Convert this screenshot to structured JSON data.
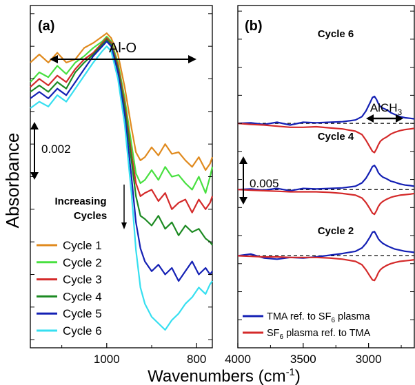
{
  "figure": {
    "ylabel": "Absorbance",
    "xlabel": "Wavenumbers (cm",
    "xlabel_sup": "-1",
    "xlabel_close": ")"
  },
  "chart_data": [
    {
      "panel": "(a)",
      "type": "line",
      "xlabel": "Wavenumbers (cm-1)",
      "ylabel": "Absorbance",
      "xlim": [
        1170,
        765
      ],
      "ylim": [
        -0.0145,
        0.0065
      ],
      "x_ticks": [
        1000,
        800
      ],
      "grid": false,
      "legend_position": "lower-left",
      "annotations": {
        "band": "Al-O",
        "trend_line1": "Increasing",
        "trend_line2": "Cycles",
        "scalebar": "0.002"
      },
      "scalebar_value": 0.002,
      "x": [
        1170,
        1150,
        1130,
        1110,
        1090,
        1070,
        1050,
        1030,
        1010,
        1000,
        990,
        975,
        960,
        945,
        935,
        925,
        915,
        900,
        885,
        870,
        855,
        840,
        825,
        810,
        795,
        780,
        770,
        765
      ],
      "series": [
        {
          "name": "Cycle 1",
          "color": "#e08a1e",
          "values": [
            0.003,
            0.0035,
            0.003,
            0.0036,
            0.003,
            0.0032,
            0.0039,
            0.0042,
            0.0046,
            0.0048,
            0.0045,
            0.0035,
            0.0015,
            -0.001,
            -0.0025,
            -0.003,
            -0.0028,
            -0.0022,
            -0.0027,
            -0.002,
            -0.0026,
            -0.0025,
            -0.003,
            -0.0034,
            -0.0028,
            -0.0036,
            -0.0032,
            -0.0028
          ]
        },
        {
          "name": "Cycle 2",
          "color": "#48e040",
          "values": [
            0.0018,
            0.0024,
            0.0021,
            0.0028,
            0.0023,
            0.003,
            0.0034,
            0.0039,
            0.0043,
            0.0046,
            0.0043,
            0.003,
            0.0008,
            -0.002,
            -0.0038,
            -0.0044,
            -0.0042,
            -0.0036,
            -0.0042,
            -0.0034,
            -0.004,
            -0.0039,
            -0.0044,
            -0.0048,
            -0.004,
            -0.005,
            -0.004,
            -0.0034
          ]
        },
        {
          "name": "Cycle 3",
          "color": "#d42a2a",
          "values": [
            0.0015,
            0.002,
            0.0016,
            0.0022,
            0.0018,
            0.0026,
            0.0032,
            0.0036,
            0.0042,
            0.0045,
            0.0042,
            0.0028,
            0.0005,
            -0.0026,
            -0.0044,
            -0.0052,
            -0.005,
            -0.0048,
            -0.0055,
            -0.005,
            -0.006,
            -0.0056,
            -0.0054,
            -0.0062,
            -0.0054,
            -0.006,
            -0.0056,
            -0.0052
          ]
        },
        {
          "name": "Cycle 4",
          "color": "#1c8a22",
          "values": [
            0.0012,
            0.0016,
            0.0012,
            0.0018,
            0.0014,
            0.0024,
            0.003,
            0.0035,
            0.0041,
            0.0044,
            0.0041,
            0.0026,
            0.0002,
            -0.003,
            -0.0052,
            -0.0064,
            -0.0066,
            -0.007,
            -0.0064,
            -0.0072,
            -0.0068,
            -0.0076,
            -0.007,
            -0.0074,
            -0.0072,
            -0.0078,
            -0.008,
            -0.0082
          ]
        },
        {
          "name": "Cycle 5",
          "color": "#1420b4",
          "values": [
            0.0008,
            0.0012,
            0.0008,
            0.0014,
            0.001,
            0.0018,
            0.0026,
            0.0034,
            0.004,
            0.0043,
            0.004,
            0.0024,
            -0.0002,
            -0.004,
            -0.0068,
            -0.0084,
            -0.0092,
            -0.0098,
            -0.0094,
            -0.01,
            -0.0096,
            -0.0104,
            -0.0098,
            -0.0092,
            -0.01,
            -0.0096,
            -0.01,
            -0.0098
          ]
        },
        {
          "name": "Cycle 6",
          "color": "#36dff0",
          "values": [
            0.0002,
            0.0006,
            0.0003,
            0.001,
            0.0006,
            0.0014,
            0.0022,
            0.003,
            0.0037,
            0.004,
            0.0037,
            0.002,
            -0.0008,
            -0.005,
            -0.0085,
            -0.0108,
            -0.0118,
            -0.0126,
            -0.013,
            -0.0134,
            -0.0128,
            -0.0124,
            -0.0118,
            -0.0114,
            -0.0108,
            -0.0112,
            -0.0106,
            -0.0104
          ]
        }
      ]
    },
    {
      "panel": "(b)",
      "type": "line",
      "xlabel": "Wavenumbers (cm-1)",
      "xlim": [
        4000,
        2650
      ],
      "ylim": [
        -0.04,
        0.021
      ],
      "x_ticks": [
        4000,
        3500,
        3000
      ],
      "grid": false,
      "legend_position": "bottom",
      "annotations": {
        "label": "AlCH",
        "label_subscript": "3",
        "scalebar": "0.005"
      },
      "scalebar_value": 0.005,
      "x": [
        4000,
        3900,
        3800,
        3700,
        3600,
        3500,
        3400,
        3300,
        3200,
        3100,
        3050,
        3020,
        2990,
        2970,
        2955,
        2940,
        2925,
        2910,
        2890,
        2860,
        2830,
        2800,
        2760,
        2720,
        2680,
        2650
      ],
      "groups": [
        {
          "label": "Cycle 6",
          "offset": 0.0,
          "series": [
            {
              "name": "TMA ref. to SF6 plasma",
              "color": "#1420b4",
              "values": [
                0,
                0.0001,
                -0.0002,
                0.0002,
                -0.0003,
                0.0002,
                0.0001,
                0.0002,
                0.0003,
                0.0006,
                0.0012,
                0.0022,
                0.0036,
                0.0046,
                0.0048,
                0.0043,
                0.0035,
                0.003,
                0.0027,
                0.0024,
                0.0019,
                0.0016,
                0.0012,
                0.001,
                0.0009,
                0.0008
              ]
            },
            {
              "name": "SF6 plasma ref. to TMA",
              "color": "#d42a2a",
              "values": [
                0,
                -0.0002,
                -0.0003,
                -0.0005,
                -0.0007,
                -0.0007,
                -0.0006,
                -0.0008,
                -0.001,
                -0.0014,
                -0.002,
                -0.003,
                -0.0042,
                -0.005,
                -0.0052,
                -0.0046,
                -0.0038,
                -0.0032,
                -0.0028,
                -0.0024,
                -0.0019,
                -0.0016,
                -0.0013,
                -0.0011,
                -0.001,
                -0.0009
              ]
            }
          ]
        },
        {
          "label": "Cycle 4",
          "offset": -0.0118,
          "series": [
            {
              "name": "TMA ref. to SF6 plasma",
              "color": "#1420b4",
              "values": [
                0,
                0.0001,
                -0.0001,
                0.0002,
                -0.0002,
                0.0002,
                0.0001,
                0.0002,
                0.0003,
                0.0006,
                0.0012,
                0.002,
                0.0032,
                0.0041,
                0.0043,
                0.0038,
                0.003,
                0.0026,
                0.0022,
                0.0019,
                0.0015,
                0.0013,
                0.001,
                0.0008,
                0.0007,
                0.0006
              ]
            },
            {
              "name": "SF6 plasma ref. to TMA",
              "color": "#d42a2a",
              "values": [
                0,
                -0.0001,
                -0.0002,
                -0.0003,
                -0.0004,
                -0.0004,
                -0.0004,
                -0.0005,
                -0.0007,
                -0.001,
                -0.0015,
                -0.0023,
                -0.0034,
                -0.0042,
                -0.0044,
                -0.0038,
                -0.003,
                -0.0025,
                -0.0021,
                -0.0017,
                -0.0014,
                -0.0012,
                -0.001,
                -0.0009,
                -0.0008,
                -0.0007
              ]
            }
          ]
        },
        {
          "label": "Cycle 2",
          "offset": -0.0236,
          "series": [
            {
              "name": "TMA ref. to SF6 plasma",
              "color": "#1420b4",
              "values": [
                0,
                0.0003,
                -0.0004,
                -0.0006,
                -0.0003,
                -0.0004,
                -0.0002,
                0.0001,
                0.0004,
                0.0008,
                0.0014,
                0.0022,
                0.0033,
                0.0042,
                0.0043,
                0.0037,
                0.003,
                0.0026,
                0.0022,
                0.0018,
                0.0015,
                0.0012,
                0.001,
                0.0008,
                0.0007,
                0.0006
              ]
            },
            {
              "name": "SF6 plasma ref. to TMA",
              "color": "#d42a2a",
              "values": [
                0,
                -0.0001,
                -0.0002,
                -0.0002,
                -0.0003,
                -0.0003,
                -0.0003,
                -0.0004,
                -0.0006,
                -0.001,
                -0.0016,
                -0.0025,
                -0.0036,
                -0.0043,
                -0.0044,
                -0.0038,
                -0.003,
                -0.0025,
                -0.0021,
                -0.0017,
                -0.0014,
                -0.0012,
                -0.001,
                -0.0009,
                -0.0008,
                -0.0007
              ]
            }
          ]
        }
      ],
      "legend": [
        {
          "label": "TMA ref. to SF",
          "sub": "6",
          "tail": " plasma",
          "color": "#1420b4"
        },
        {
          "label": "SF",
          "sub": "6",
          "tail": " plasma ref. to TMA",
          "color": "#d42a2a"
        }
      ]
    }
  ]
}
